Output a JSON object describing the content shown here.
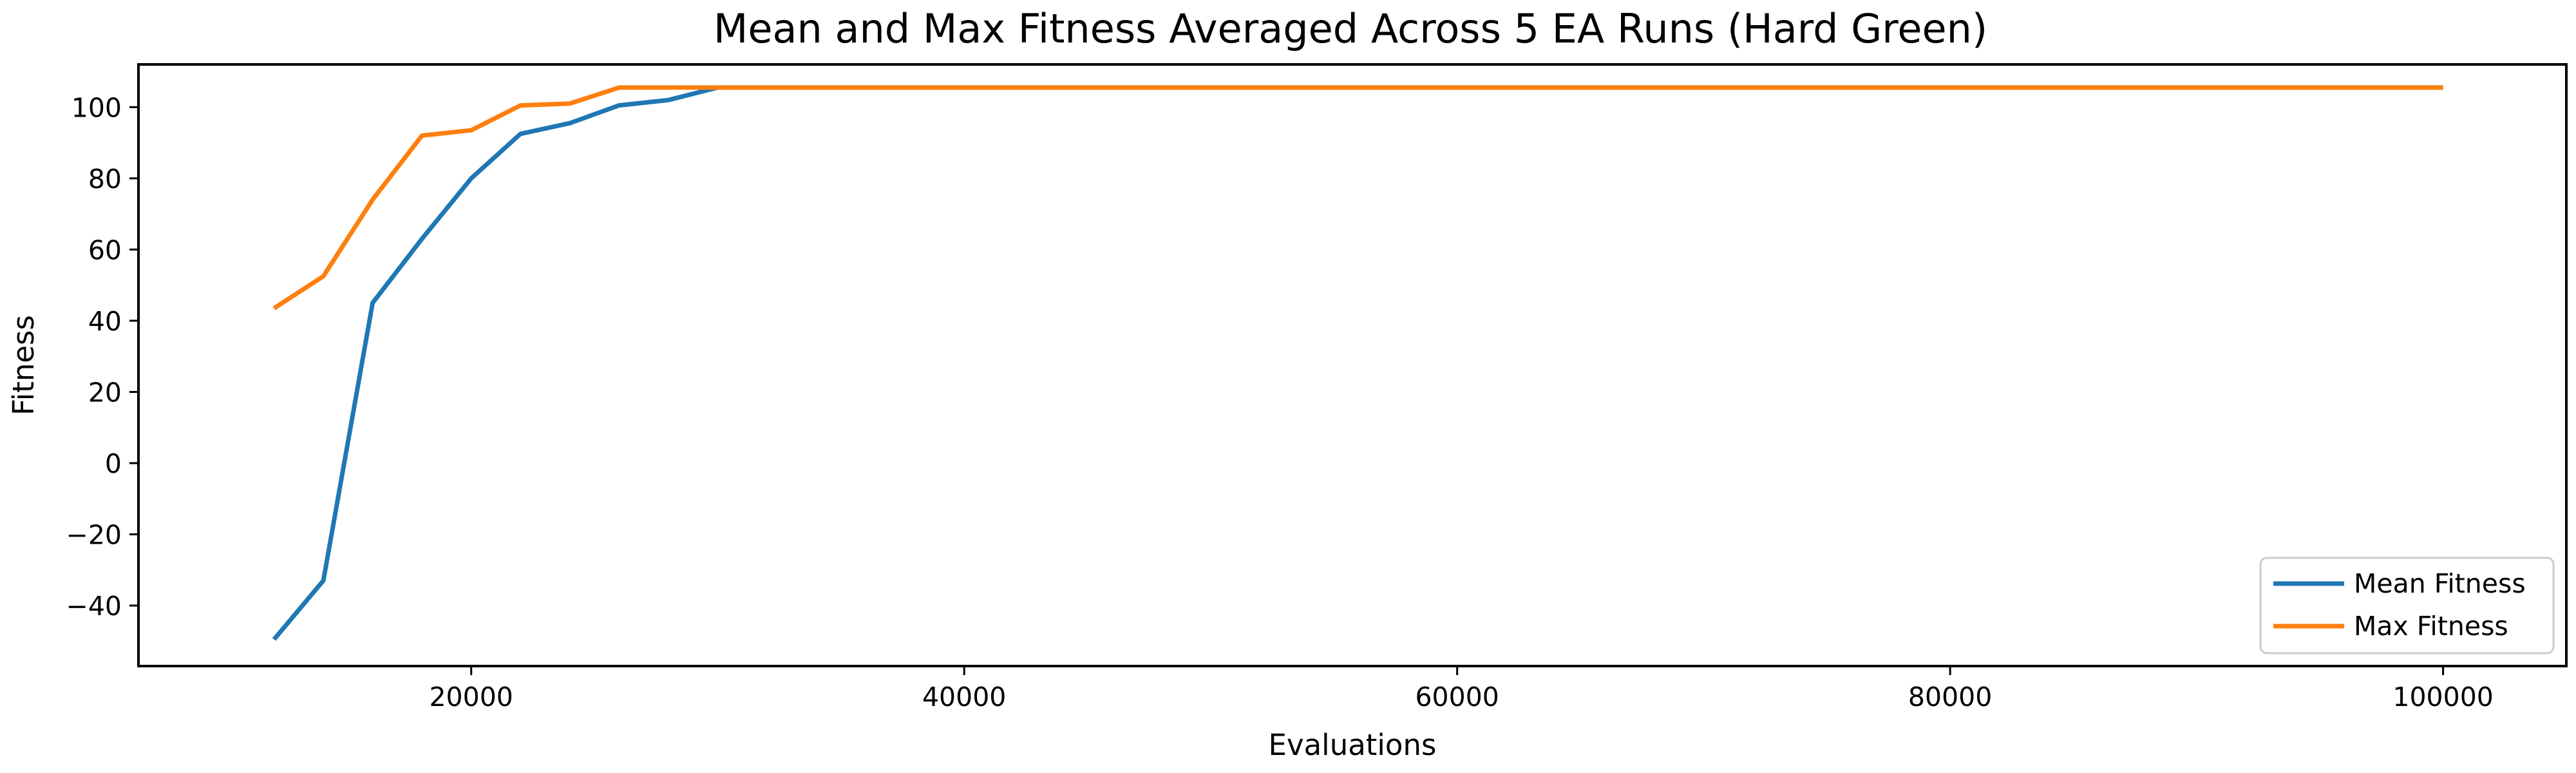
{
  "chart_data": {
    "type": "line",
    "title": "Mean and Max Fitness Averaged Across 5 EA Runs (Hard Green)",
    "xlabel": "Evaluations",
    "ylabel": "Fitness",
    "xlim": [
      6500,
      105000
    ],
    "ylim": [
      -57,
      112
    ],
    "xticks": [
      20000,
      40000,
      60000,
      80000,
      100000
    ],
    "xtick_labels": [
      "20000",
      "40000",
      "60000",
      "80000",
      "100000"
    ],
    "yticks": [
      -40,
      -20,
      0,
      20,
      40,
      60,
      80,
      100
    ],
    "ytick_labels": [
      "−40",
      "−20",
      "0",
      "20",
      "40",
      "60",
      "80",
      "100"
    ],
    "grid": false,
    "legend_position": "lower-right",
    "series": [
      {
        "name": "Mean Fitness",
        "color": "#1f77b4",
        "x": [
          12000,
          14000,
          16000,
          18000,
          20000,
          22000,
          24000,
          26000,
          28000,
          30000,
          32000,
          40000,
          50000,
          60000,
          70000,
          80000,
          90000,
          100000
        ],
        "y": [
          -49.5,
          -33,
          45,
          63,
          80,
          92.5,
          95.5,
          100.5,
          102,
          105.5,
          105.5,
          105.5,
          105.5,
          105.5,
          105.5,
          105.5,
          105.5,
          105.5
        ]
      },
      {
        "name": "Max Fitness",
        "color": "#ff7f0e",
        "x": [
          12000,
          14000,
          16000,
          18000,
          20000,
          22000,
          24000,
          26000,
          28000,
          30000,
          40000,
          50000,
          60000,
          70000,
          80000,
          90000,
          100000
        ],
        "y": [
          43.5,
          52.5,
          74,
          92,
          93.5,
          100.5,
          101,
          105.5,
          105.5,
          105.5,
          105.5,
          105.5,
          105.5,
          105.5,
          105.5,
          105.5,
          105.5
        ]
      }
    ]
  }
}
